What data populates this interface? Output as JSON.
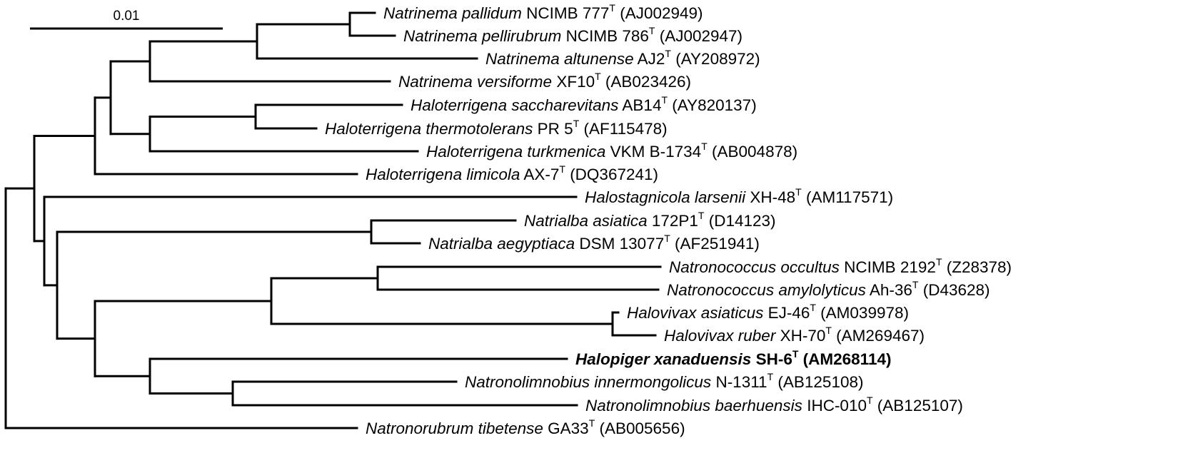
{
  "scale_bar": {
    "label": "0.01"
  },
  "taxa": [
    {
      "genus": "Natrinema",
      "species": "pallidum",
      "strain": "NCIMB 777",
      "type_mark": "T",
      "accession": "(AJ002949)",
      "highlight": false
    },
    {
      "genus": "Natrinema",
      "species": "pellirubrum",
      "strain": "NCIMB 786",
      "type_mark": "T",
      "accession": "(AJ002947)",
      "highlight": false
    },
    {
      "genus": "Natrinema",
      "species": "altunense",
      "strain": "AJ2",
      "type_mark": "T",
      "accession": "(AY208972)",
      "highlight": false
    },
    {
      "genus": "Natrinema",
      "species": "versiforme",
      "strain": "XF10",
      "type_mark": "T",
      "accession": "(AB023426)",
      "highlight": false
    },
    {
      "genus": "Haloterrigena",
      "species": "saccharevitans",
      "strain": "AB14",
      "type_mark": "T",
      "accession": "(AY820137)",
      "highlight": false
    },
    {
      "genus": "Haloterrigena",
      "species": "thermotolerans",
      "strain": "PR 5",
      "type_mark": "T",
      "accession": "(AF115478)",
      "highlight": false
    },
    {
      "genus": "Haloterrigena",
      "species": "turkmenica",
      "strain": "VKM B-1734",
      "type_mark": "T",
      "accession": "(AB004878)",
      "highlight": false
    },
    {
      "genus": "Haloterrigena",
      "species": "limicola",
      "strain": "AX-7",
      "type_mark": "T",
      "accession": "(DQ367241)",
      "highlight": false
    },
    {
      "genus": "Halostagnicola",
      "species": "larsenii",
      "strain": "XH-48",
      "type_mark": "T",
      "accession": "(AM117571)",
      "highlight": false
    },
    {
      "genus": "Natrialba",
      "species": "asiatica",
      "strain": "172P1",
      "type_mark": "T",
      "accession": "(D14123)",
      "highlight": false
    },
    {
      "genus": "Natrialba",
      "species": "aegyptiaca",
      "strain": "DSM 13077",
      "type_mark": "T",
      "accession": "(AF251941)",
      "highlight": false
    },
    {
      "genus": "Natronococcus",
      "species": "occultus",
      "strain": "NCIMB 2192",
      "type_mark": "T",
      "accession": "(Z28378)",
      "highlight": false
    },
    {
      "genus": "Natronococcus",
      "species": "amylolyticus",
      "strain": "Ah-36",
      "type_mark": "T",
      "accession": "(D43628)",
      "highlight": false
    },
    {
      "genus": "Halovivax",
      "species": "asiaticus",
      "strain": "EJ-46",
      "type_mark": "T",
      "accession": "(AM039978)",
      "highlight": false
    },
    {
      "genus": "Halovivax",
      "species": "ruber",
      "strain": "XH-70",
      "type_mark": "T",
      "accession": "(AM269467)",
      "highlight": false
    },
    {
      "genus": "Halopiger",
      "species": "xanaduensis",
      "strain": "SH-6",
      "type_mark": "T",
      "accession": "(AM268114)",
      "highlight": true
    },
    {
      "genus": "Natronolimnobius",
      "species": "innermongolicus",
      "strain": "N-1311",
      "type_mark": "T",
      "accession": "(AB125108)",
      "highlight": false
    },
    {
      "genus": "Natronolimnobius",
      "species": "baerhuensis",
      "strain": "IHC-010",
      "type_mark": "T",
      "accession": "(AB125107)",
      "highlight": false
    },
    {
      "genus": "Natronorubrum",
      "species": "tibetense",
      "strain": "GA33",
      "type_mark": "T",
      "accession": "(AB005656)",
      "highlight": false
    }
  ]
}
